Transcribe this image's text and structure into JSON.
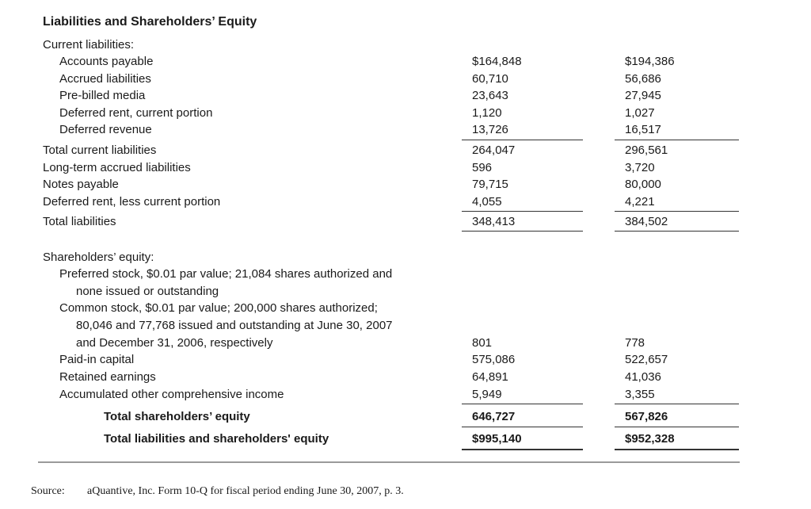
{
  "title": "Liabilities and Shareholders’ Equity",
  "current_header": "Current liabilities:",
  "current_items": [
    {
      "label": "Accounts payable",
      "v1": "$164,848",
      "v2": "$194,386"
    },
    {
      "label": "Accrued liabilities",
      "v1": "60,710",
      "v2": "56,686"
    },
    {
      "label": "Pre-billed media",
      "v1": "23,643",
      "v2": "27,945"
    },
    {
      "label": "Deferred rent, current portion",
      "v1": "1,120",
      "v2": "1,027"
    },
    {
      "label": "Deferred revenue",
      "v1": "13,726",
      "v2": "16,517"
    }
  ],
  "total_current": {
    "label": "Total current liabilities",
    "v1": "264,047",
    "v2": "296,561"
  },
  "other_liabilities": [
    {
      "label": "Long-term accrued liabilities",
      "v1": "596",
      "v2": "3,720"
    },
    {
      "label": "Notes payable",
      "v1": "79,715",
      "v2": "80,000"
    },
    {
      "label": "Deferred rent, less current portion",
      "v1": "4,055",
      "v2": "4,221"
    }
  ],
  "total_liabilities": {
    "label": "Total liabilities",
    "v1": "348,413",
    "v2": "384,502"
  },
  "equity_header": "Shareholders’ equity:",
  "preferred_lines": [
    "Preferred stock, $0.01 par value; 21,084 shares authorized and",
    "none issued or outstanding"
  ],
  "common_lines": [
    "Common stock, $0.01 par value; 200,000 shares authorized;",
    "80,046 and 77,768 issued and outstanding at June 30, 2007",
    "and December 31, 2006, respectively"
  ],
  "common_values": {
    "v1": "801",
    "v2": "778"
  },
  "equity_items": [
    {
      "label": "Paid-in capital",
      "v1": "575,086",
      "v2": "522,657"
    },
    {
      "label": "Retained earnings",
      "v1": "64,891",
      "v2": "41,036"
    },
    {
      "label": "Accumulated other comprehensive income",
      "v1": "5,949",
      "v2": "3,355"
    }
  ],
  "total_equity": {
    "label": "Total shareholders’ equity",
    "v1": "646,727",
    "v2": "567,826"
  },
  "total_liab_equity": {
    "label": "Total liabilities and shareholders' equity",
    "v1": "$995,140",
    "v2": "$952,328"
  },
  "source_label": "Source:",
  "source_text": "aQuantive, Inc. Form 10-Q for fiscal period ending June 30, 2007, p. 3."
}
